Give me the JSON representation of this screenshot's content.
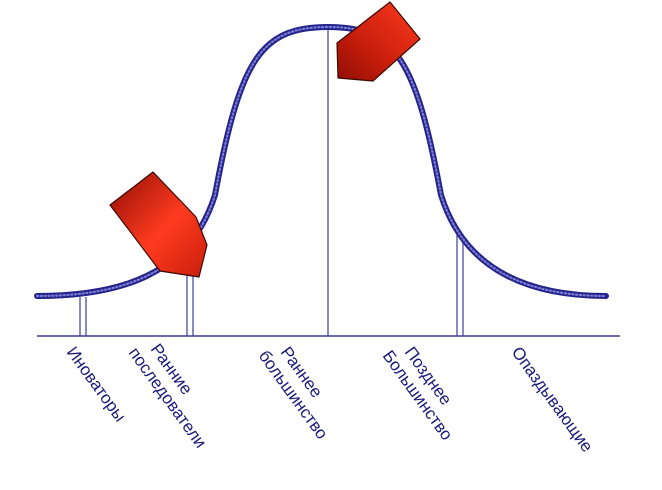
{
  "diagram": {
    "segments": [
      {
        "id": "innovators",
        "lines": [
          "Иноваторы"
        ]
      },
      {
        "id": "early-adopters",
        "lines": [
          "Ранние",
          "последователи"
        ]
      },
      {
        "id": "early-majority",
        "lines": [
          "Раннее",
          "большинство"
        ]
      },
      {
        "id": "late-majority",
        "lines": [
          "Позднее",
          "Большинство"
        ]
      },
      {
        "id": "laggards",
        "lines": [
          "Опаздывающие"
        ]
      }
    ],
    "colors": {
      "curve": "#3a3aa8",
      "curve_dark": "#23238a",
      "divider": "#3b3b9c",
      "baseline": "#3b3b9c",
      "label": "#1a1a7a",
      "arrow_light": "#ff3b1f",
      "arrow_dark": "#8f0d05"
    },
    "arrows": [
      {
        "id": "arrow-early-adopters",
        "icon": "arrow-down-right-icon"
      },
      {
        "id": "arrow-early-majority",
        "icon": "arrow-down-left-icon"
      }
    ]
  }
}
